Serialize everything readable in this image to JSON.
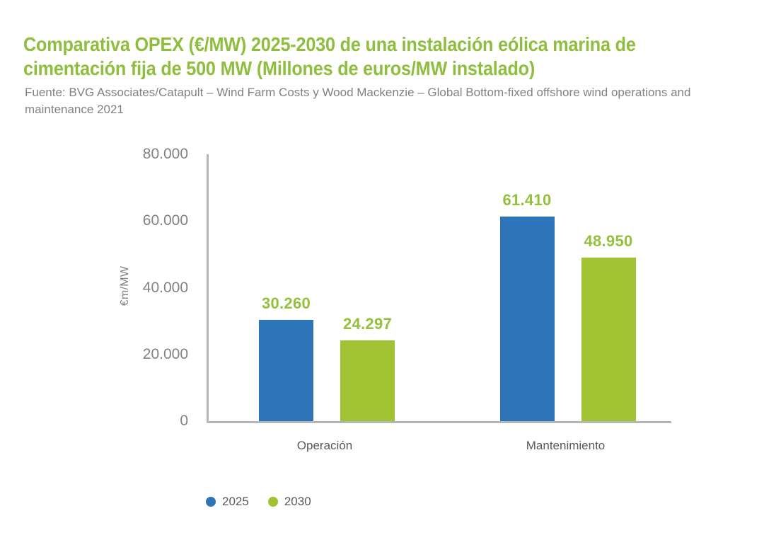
{
  "header": {
    "title": "Comparativa OPEX (€/MW) 2025-2030 de una instalación eólica marina de cimentación fija de 500 MW (Millones de euros/MW instalado)",
    "source": "Fuente: BVG Associates/Catapult – Wind Farm Costs y Wood Mackenzie – Global Bottom-fixed offshore wind operations and maintenance 2021"
  },
  "chart_data": {
    "type": "bar",
    "title": "Comparativa OPEX (€/MW) 2025-2030 de una instalación eólica marina de cimentación fija de 500 MW (Millones de euros/MW instalado)",
    "categories": [
      "Operación",
      "Mantenimiento"
    ],
    "series": [
      {
        "name": "2025",
        "color": "#2d74b9",
        "values": [
          30260,
          61410
        ],
        "value_labels": [
          "30.260",
          "61.410"
        ]
      },
      {
        "name": "2030",
        "color": "#a1c233",
        "values": [
          24297,
          48950
        ],
        "value_labels": [
          "24.297",
          "48.950"
        ]
      }
    ],
    "xlabel": "",
    "ylabel": "€m/MW",
    "ylim": [
      0,
      80000
    ],
    "yticks": [
      {
        "value": 0,
        "label": "0"
      },
      {
        "value": 20000,
        "label": "20.000"
      },
      {
        "value": 40000,
        "label": "40.000"
      },
      {
        "value": 60000,
        "label": "60.000"
      },
      {
        "value": 80000,
        "label": "80.000"
      }
    ],
    "grid": false,
    "legend_position": "bottom-left",
    "value_label_color": "#93c03d"
  },
  "colors": {
    "title_green": "#8fbe3e",
    "source_gray": "#808285",
    "axis_line": "#b5b6b6",
    "tick_text": "#808285",
    "category_text": "#58595b",
    "background": "#ffffff"
  }
}
